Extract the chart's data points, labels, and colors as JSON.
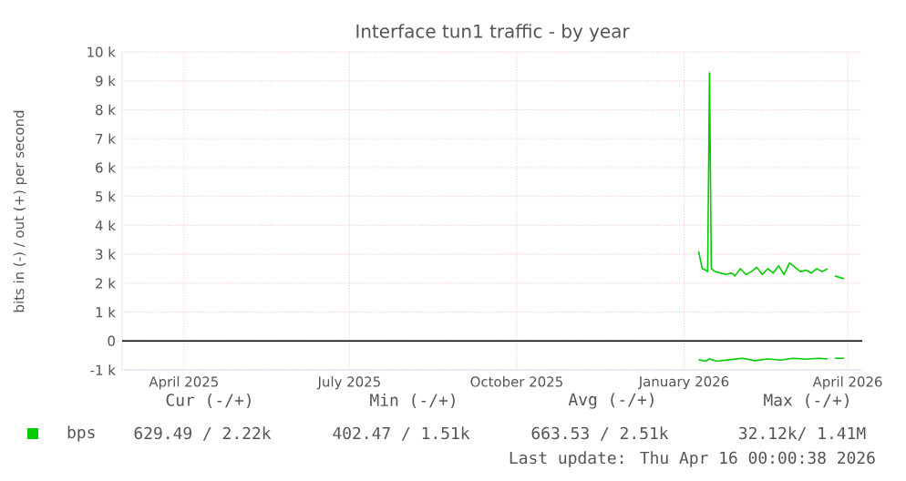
{
  "chart_data": {
    "type": "line",
    "title": "Interface tun1 traffic - by year",
    "ylabel": "bits in (-) / out (+) per second",
    "xlim": [
      "2025-03-13",
      "2026-04-24"
    ],
    "xticks": [
      {
        "value": "2025-04-16",
        "label": "April 2025"
      },
      {
        "value": "2025-07-16",
        "label": "July 2025"
      },
      {
        "value": "2025-10-16",
        "label": "October 2025"
      },
      {
        "value": "2026-01-16",
        "label": "January 2026"
      },
      {
        "value": "2026-04-16",
        "label": "April 2026"
      }
    ],
    "ylim": [
      -1000,
      10000
    ],
    "yticks": [
      {
        "value": -1000,
        "label": "-1 k"
      },
      0,
      {
        "value": 1000,
        "label": "1 k"
      },
      {
        "value": 2000,
        "label": "2 k"
      },
      {
        "value": 3000,
        "label": "3 k"
      },
      {
        "value": 4000,
        "label": "4 k"
      },
      {
        "value": 5000,
        "label": "5 k"
      },
      {
        "value": 6000,
        "label": "6 k"
      },
      {
        "value": 7000,
        "label": "7 k"
      },
      {
        "value": 8000,
        "label": "8 k"
      },
      {
        "value": 9000,
        "label": "9 k"
      },
      {
        "value": 10000,
        "label": "10 k"
      }
    ],
    "grid": true,
    "legend": "bottom left",
    "ref_lines": [
      {
        "axis": "y",
        "value": 0,
        "color": "#000000"
      }
    ],
    "series": [
      {
        "name": "bps",
        "color": "#00cc00",
        "x": [
          "2026-01-24",
          "2026-01-26",
          "2026-01-28",
          "2026-01-29",
          "2026-01-30",
          "2026-01-31",
          "2026-02-02",
          "2026-02-05",
          "2026-02-08",
          "2026-02-11",
          "2026-02-13",
          "2026-02-16",
          "2026-02-19",
          "2026-02-22",
          "2026-02-25",
          "2026-02-28",
          "2026-03-03",
          "2026-03-06",
          "2026-03-09",
          "2026-03-12",
          "2026-03-15",
          "2026-03-18",
          "2026-03-21",
          "2026-03-24",
          "2026-03-27",
          "2026-03-30",
          "2026-04-02",
          "2026-04-05",
          "2026-04-07",
          "2026-04-09",
          "2026-04-14"
        ],
        "values": [
          3100,
          2500,
          2450,
          2400,
          9270,
          2500,
          2400,
          2350,
          2300,
          2350,
          2250,
          2500,
          2300,
          2400,
          2550,
          2300,
          2500,
          2350,
          2600,
          2300,
          2700,
          2550,
          2400,
          2450,
          2350,
          2500,
          2400,
          2500,
          null,
          2250,
          2150
        ]
      },
      {
        "color": "#00cc00",
        "x": [
          "2026-01-24",
          "2026-01-28",
          "2026-01-30",
          "2026-02-03",
          "2026-02-10",
          "2026-02-17",
          "2026-02-24",
          "2026-03-03",
          "2026-03-10",
          "2026-03-17",
          "2026-03-24",
          "2026-03-31",
          "2026-04-05",
          "2026-04-07",
          "2026-04-09",
          "2026-04-14"
        ],
        "values": [
          -650,
          -700,
          -620,
          -700,
          -650,
          -600,
          -680,
          -620,
          -660,
          -600,
          -630,
          -600,
          -620,
          null,
          -600,
          -600
        ]
      }
    ],
    "annotations": [
      "Cur (-/+)",
      "Min (-/+)",
      "Avg (-/+)",
      "Max (-/+)",
      "629.49 / 2.22k",
      "402.47 / 1.51k",
      "663.53 / 2.51k",
      "32.12k/ 1.41M",
      "Last update: Thu Apr 16 00:00:38 2026"
    ]
  }
}
